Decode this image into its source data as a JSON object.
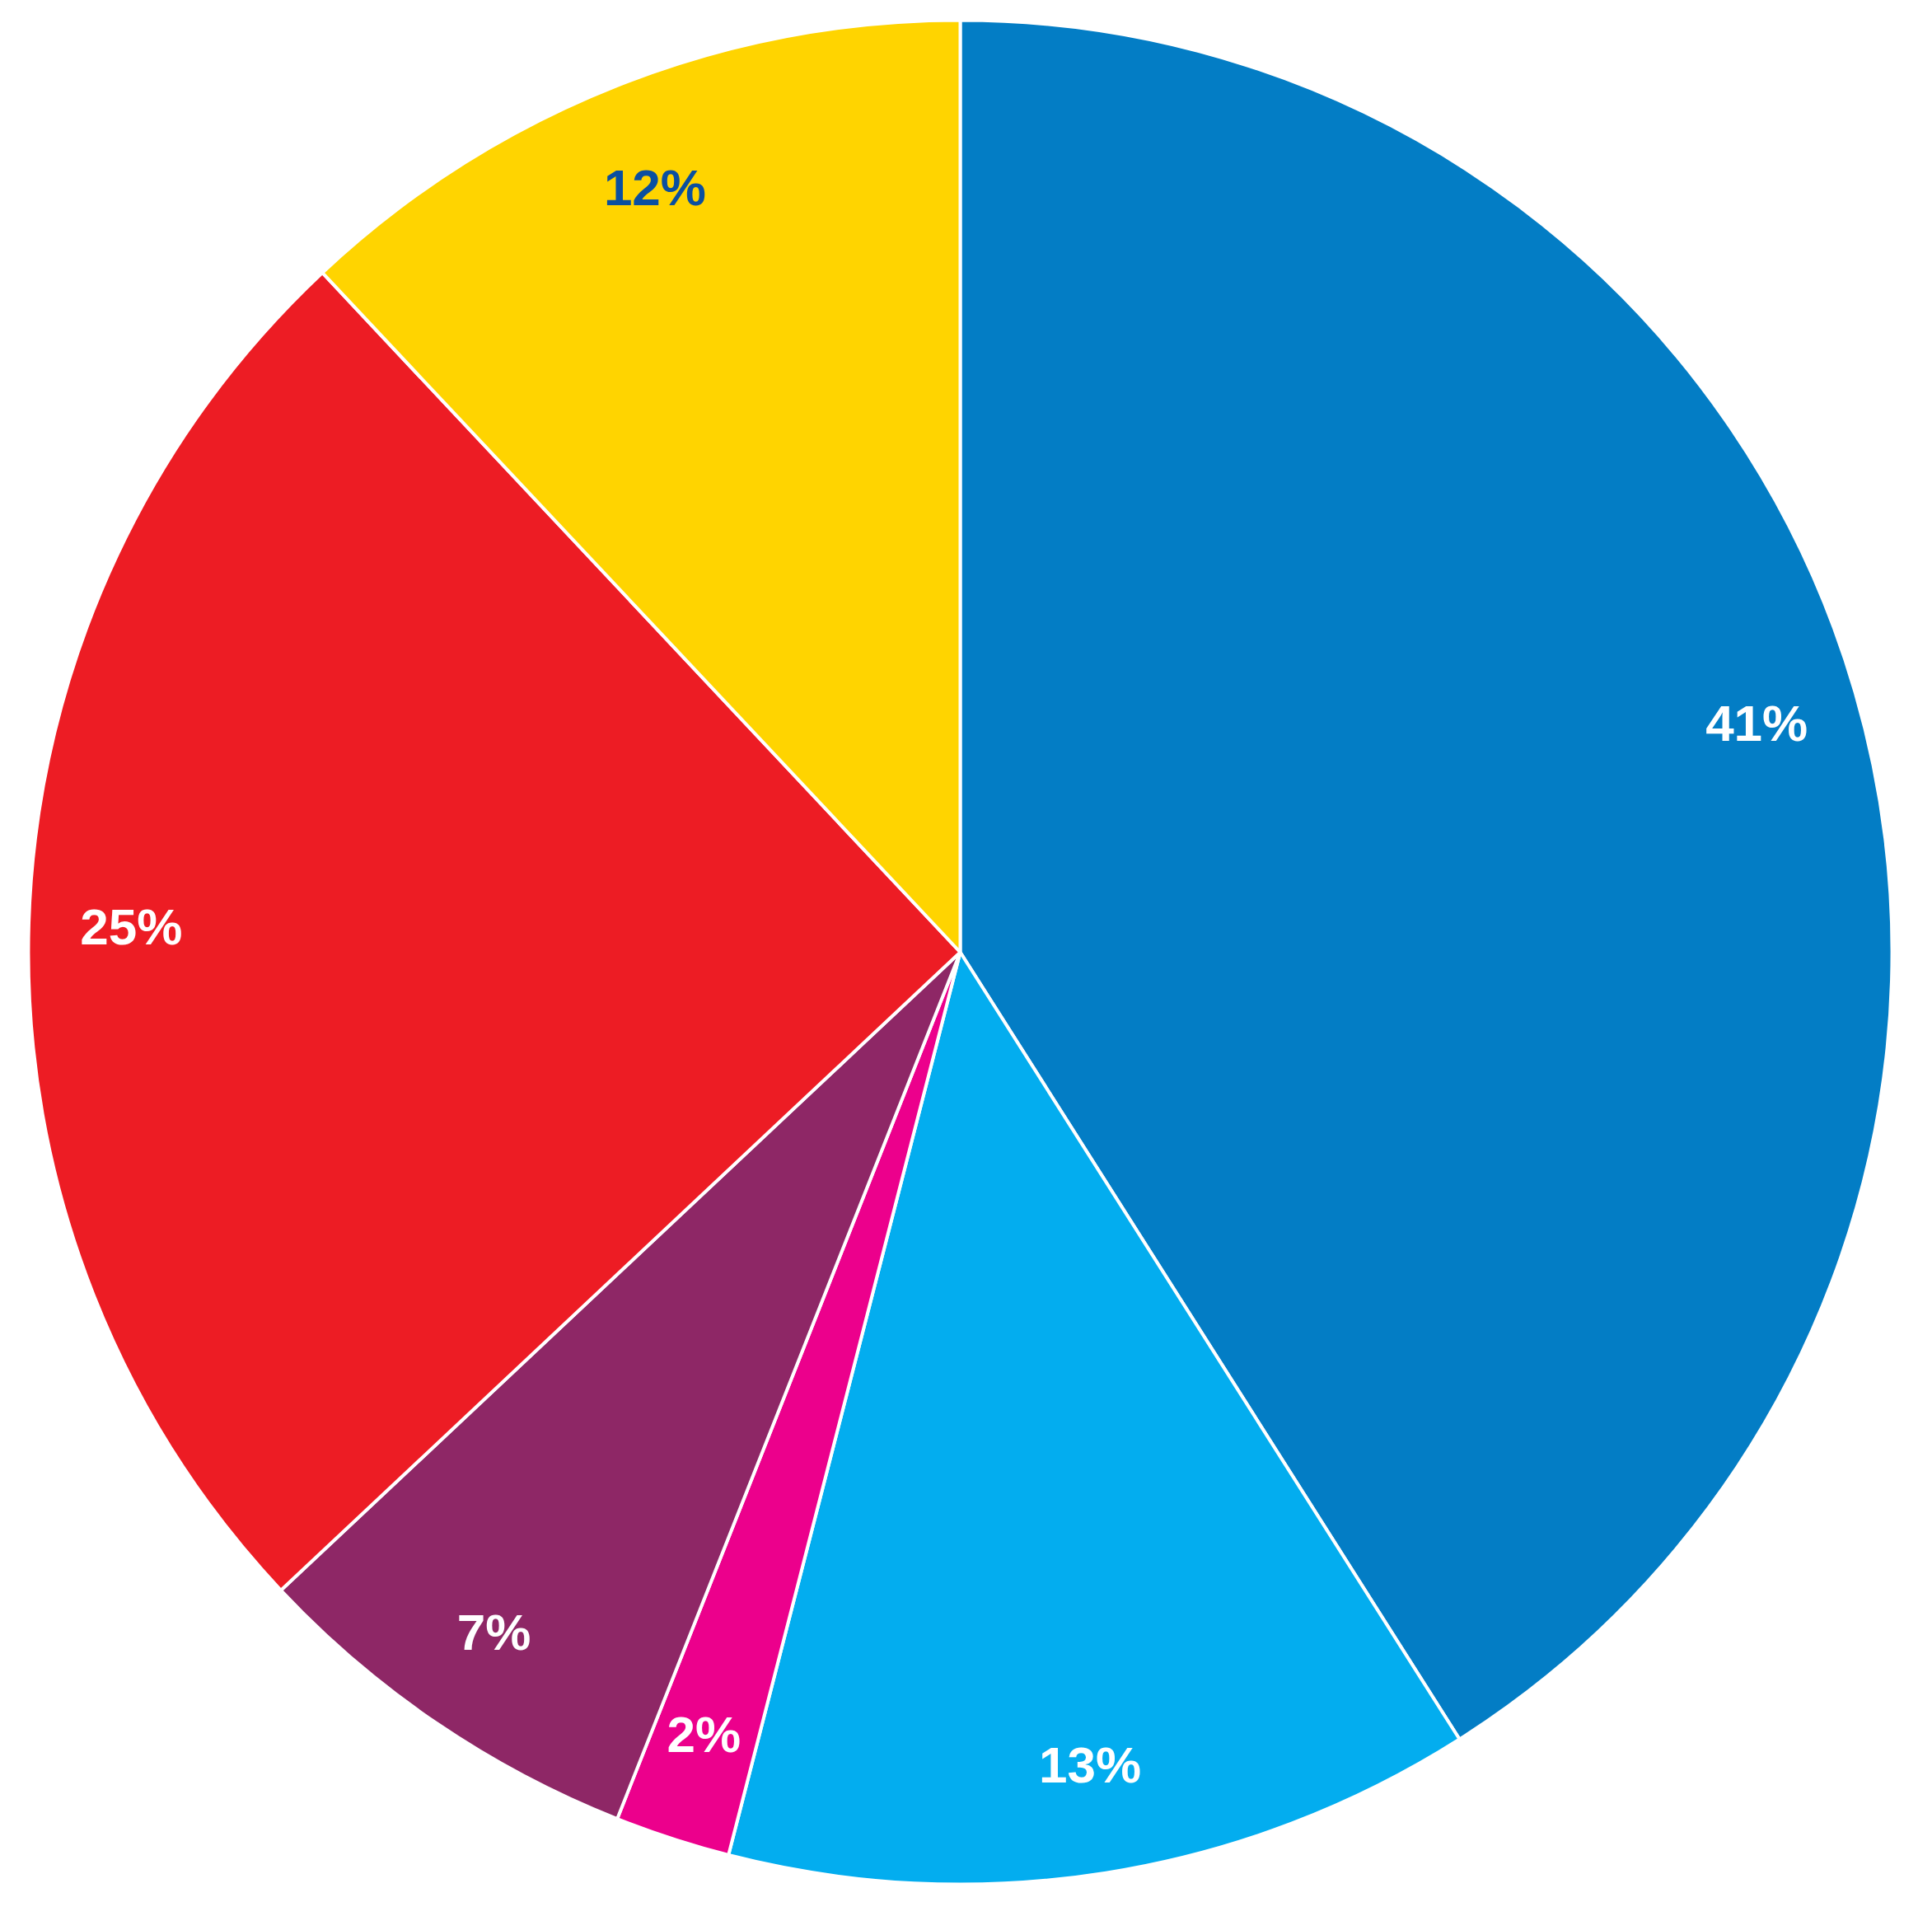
{
  "chart_data": {
    "type": "pie",
    "categories": [
      null,
      null,
      null,
      null,
      null,
      null
    ],
    "values": [
      41,
      13,
      2,
      7,
      25,
      12
    ],
    "colors": [
      "#037dc5",
      "#03adef",
      "#ec008c",
      "#8e2766",
      "#ed1c24",
      "#ffd400"
    ],
    "value_labels": [
      "41%",
      "13%",
      "2%",
      "7%",
      "25%",
      "12%"
    ]
  }
}
